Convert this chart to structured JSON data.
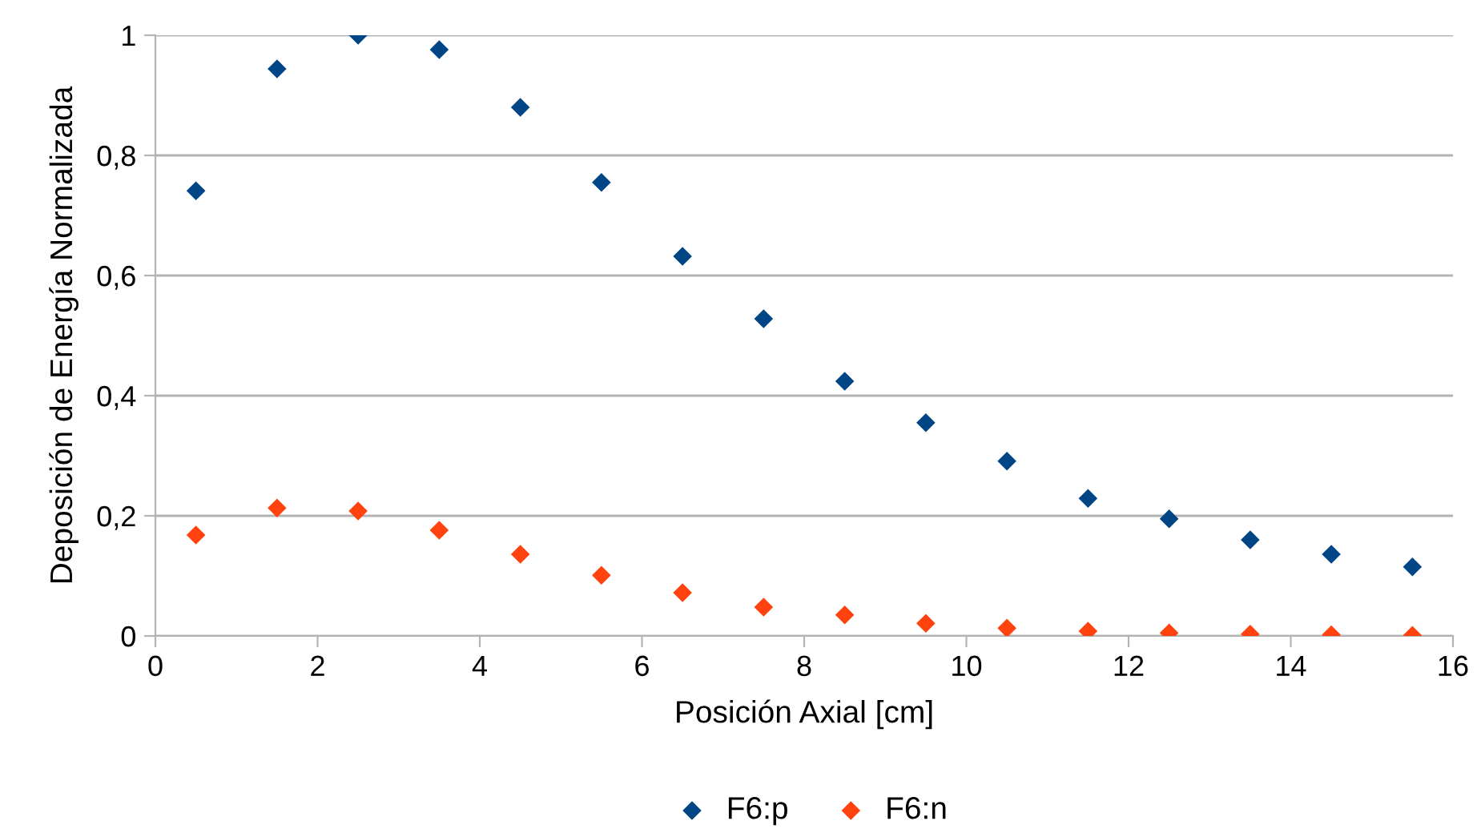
{
  "chart_data": {
    "type": "scatter",
    "xlabel": "Posición Axial [cm]",
    "ylabel": "Deposición de Energía Normalizada",
    "x": [
      0.5,
      1.5,
      2.5,
      3.5,
      4.5,
      5.5,
      6.5,
      7.5,
      8.5,
      9.5,
      10.5,
      11.5,
      12.5,
      13.5,
      14.5,
      15.5
    ],
    "series": [
      {
        "name": "F6:p",
        "color": "#004586",
        "values": [
          0.741,
          0.944,
          1.0,
          0.976,
          0.88,
          0.755,
          0.632,
          0.528,
          0.424,
          0.355,
          0.291,
          0.229,
          0.195,
          0.16,
          0.136,
          0.115
        ]
      },
      {
        "name": "F6:n",
        "color": "#ff420e",
        "values": [
          0.168,
          0.213,
          0.208,
          0.176,
          0.136,
          0.101,
          0.072,
          0.048,
          0.035,
          0.021,
          0.013,
          0.008,
          0.005,
          0.003,
          0.002,
          0.001
        ]
      }
    ],
    "xlim": [
      0,
      16
    ],
    "xticks": [
      0,
      2,
      4,
      6,
      8,
      10,
      12,
      14,
      16
    ],
    "ylim": [
      0,
      1
    ],
    "yticks": [
      0,
      {
        "value": 0.2,
        "label": "0,2"
      },
      {
        "value": 0.4,
        "label": "0,4"
      },
      {
        "value": 0.6,
        "label": "0,6"
      },
      {
        "value": 0.8,
        "label": "0,8"
      },
      1
    ],
    "grid": "y",
    "legend": "bottom",
    "marker": "diamond"
  }
}
